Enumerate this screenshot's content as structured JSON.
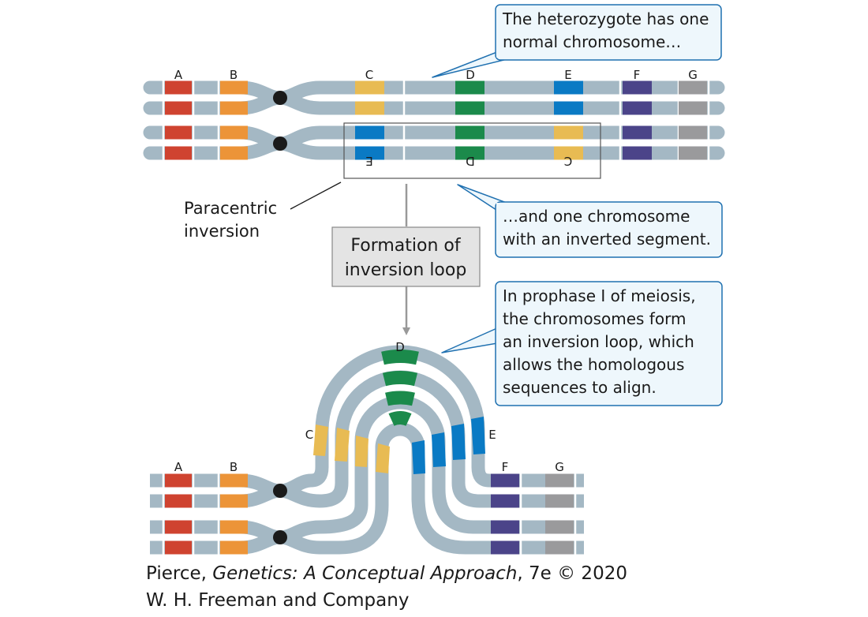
{
  "gene_labels": {
    "a": "A",
    "b": "B",
    "c": "C",
    "d": "D",
    "e": "E",
    "f": "F",
    "g": "G"
  },
  "colors": {
    "chromosome": "#a4b8c4",
    "A": "#cf4330",
    "B": "#ec9438",
    "C": "#e8bb53",
    "D": "#1b8a4b",
    "E": "#0a7ac4",
    "F": "#4b4489",
    "G": "#9a9a9c",
    "callout_border": "#1f70b0",
    "callout_fill": "#eef7fc",
    "centromere": "#1a1a1a",
    "arrow": "#999999",
    "box_fill": "#e4e4e4"
  },
  "callouts": {
    "normal_chromosome": [
      "The heterozygote has one",
      "normal chromosome…"
    ],
    "inverted_segment": [
      "…and one chromosome",
      "with an inverted segment."
    ],
    "prophase": [
      "In prophase I of meiosis,",
      "the chromosomes form",
      "an inversion loop, which",
      "allows the homologous",
      "sequences to align."
    ]
  },
  "labels": {
    "paracentric_inversion": [
      "Paracentric",
      "inversion"
    ],
    "formation_box": [
      "Formation of",
      "inversion loop"
    ]
  },
  "credit": {
    "author": "Pierce,",
    "title": "Genetics: A Conceptual Approach",
    "edition": ", 7e © 2020",
    "publisher": "W. H. Freeman and Company"
  }
}
